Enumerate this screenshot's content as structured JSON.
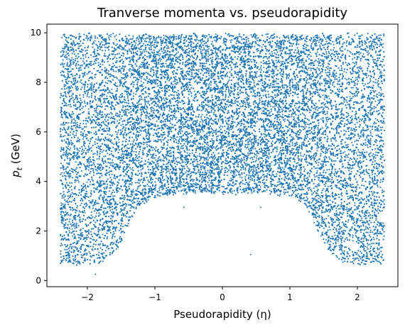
{
  "chart_data": {
    "type": "scatter",
    "title": "Tranverse momenta vs. pseudorapidity",
    "xlabel": "Pseudorapidity (η)",
    "ylabel_base": "p",
    "ylabel_sub": "t",
    "ylabel_unit": " (GeV)",
    "xlim": [
      -2.6,
      2.6
    ],
    "ylim": [
      -0.25,
      10.35
    ],
    "xticks": [
      {
        "value": -2,
        "label": "−2"
      },
      {
        "value": -1,
        "label": "−1"
      },
      {
        "value": 0,
        "label": "0"
      },
      {
        "value": 1,
        "label": "1"
      },
      {
        "value": 2,
        "label": "2"
      }
    ],
    "yticks": [
      {
        "value": 0,
        "label": "0"
      },
      {
        "value": 2,
        "label": "2"
      },
      {
        "value": 4,
        "label": "4"
      },
      {
        "value": 6,
        "label": "6"
      },
      {
        "value": 8,
        "label": "8"
      },
      {
        "value": 10,
        "label": "10"
      }
    ],
    "grid": false,
    "legend": "none",
    "marker_color": "#1f77b4",
    "series": [
      {
        "distribution": "uniform pt in [pt_min(eta), 10] for |eta| <= 2.4; pt_min(eta) follows boundary",
        "eta_range": [
          -2.4,
          2.4
        ],
        "pt_max": 10.0,
        "lower_boundary": {
          "eta": [
            -2.4,
            -2.3,
            -2.2,
            -2.1,
            -2.0,
            -1.9,
            -1.8,
            -1.7,
            -1.6,
            -1.5,
            -1.4,
            -1.3,
            -1.2,
            -1.1,
            -1.0,
            -0.9,
            -0.8,
            -0.7,
            -0.6,
            -0.5,
            -0.4,
            -0.3,
            -0.2,
            -0.1,
            0.0,
            0.1,
            0.2,
            0.3,
            0.4,
            0.5,
            0.6,
            0.7,
            0.8,
            0.9,
            1.0,
            1.1,
            1.2,
            1.3,
            1.4,
            1.5,
            1.6,
            1.7,
            1.8,
            1.9,
            2.0,
            2.1,
            2.2,
            2.3,
            2.4
          ],
          "pt_min": [
            0.8,
            0.78,
            0.76,
            0.75,
            0.75,
            0.78,
            0.82,
            0.95,
            1.2,
            1.6,
            2.2,
            2.8,
            3.15,
            3.35,
            3.45,
            3.5,
            3.55,
            3.6,
            3.6,
            3.6,
            3.6,
            3.6,
            3.6,
            3.6,
            3.6,
            3.6,
            3.6,
            3.6,
            3.6,
            3.6,
            3.6,
            3.6,
            3.55,
            3.5,
            3.45,
            3.35,
            3.15,
            2.8,
            2.2,
            1.6,
            1.2,
            0.95,
            0.82,
            0.78,
            0.75,
            0.75,
            0.76,
            0.78,
            0.8
          ]
        },
        "outliers": [
          {
            "x": -1.88,
            "y": 0.25
          },
          {
            "x": 0.42,
            "y": 1.05
          },
          {
            "x": -0.57,
            "y": 2.95
          },
          {
            "x": 0.57,
            "y": 2.95
          }
        ],
        "approx_point_count": 26000
      }
    ]
  }
}
